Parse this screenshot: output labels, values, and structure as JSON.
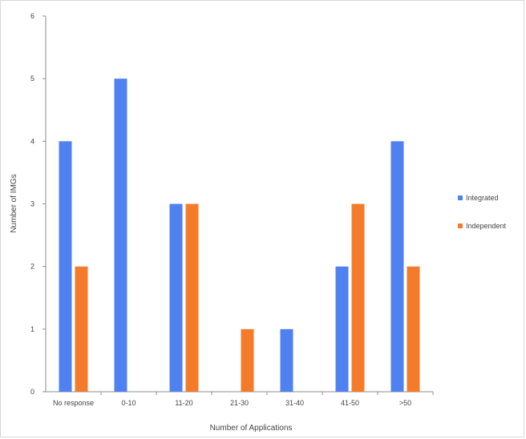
{
  "chart_data": {
    "type": "bar",
    "title": "",
    "xlabel": "Number of Applications",
    "ylabel": "Number of IMGs",
    "categories": [
      "No response",
      "0-10",
      "11-20",
      "21-30",
      "31-40",
      "41-50",
      ">50"
    ],
    "series": [
      {
        "name": "Integrated",
        "color": "#4f81f0",
        "values": [
          4,
          5,
          3,
          0,
          1,
          2,
          4
        ]
      },
      {
        "name": "Independent",
        "color": "#f47b2a",
        "values": [
          2,
          0,
          3,
          1,
          0,
          3,
          2
        ]
      }
    ],
    "ylim": [
      0,
      6
    ],
    "yticks": [
      "0",
      "1",
      "2",
      "3",
      "4",
      "5",
      "6"
    ],
    "grid": false,
    "legend_position": "right"
  }
}
